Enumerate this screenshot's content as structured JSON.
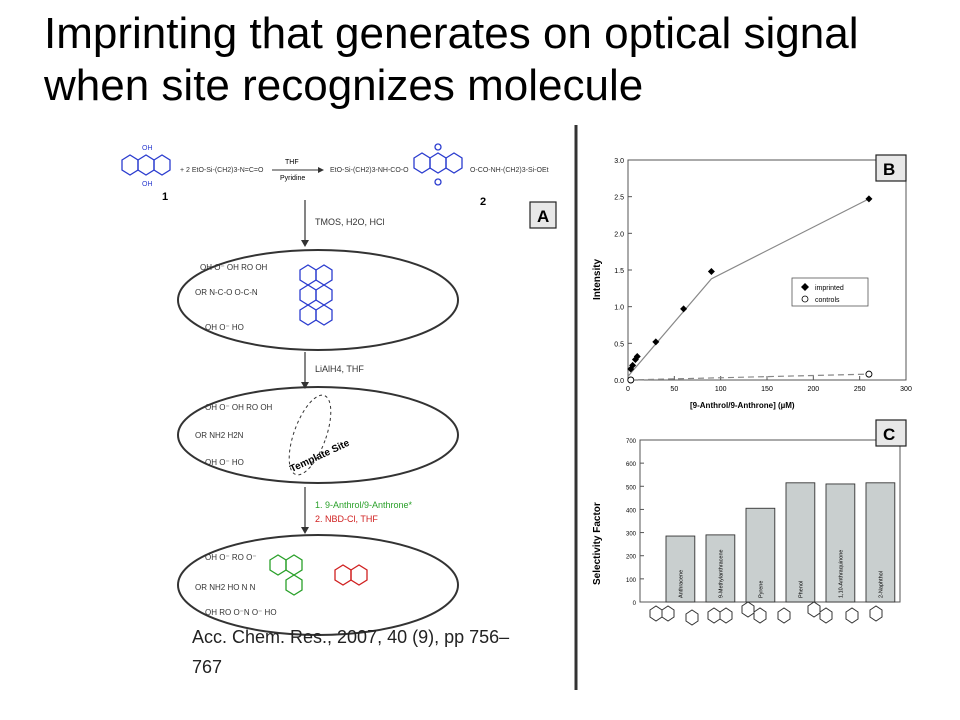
{
  "slide": {
    "title_line1": "Imprinting that generates on optical signal",
    "title_line2": "when site recognizes molecule",
    "citation_line1": "Acc. Chem. Res., 2007, 40 (9), pp 756–",
    "citation_line2": "767"
  },
  "scheme": {
    "panel_label": "A",
    "reaction1_reagent_top": "THF",
    "reaction1_reagent_bottom": "Pyridine",
    "compound1": "1",
    "compound2": "2",
    "step1": "TMOS, H2O, HCl",
    "step2": "LiAlH4, THF",
    "template_site": "Template Site",
    "step3a": "1.  9-Anthrol/9-Anthrone*",
    "step3b": "2.  NBD-Cl, THF"
  },
  "chart_data": [
    {
      "type": "scatter",
      "panel_label": "B",
      "xlabel": "[9-Anthrol/9-Anthrone] (µM)",
      "ylabel": "Intensity",
      "xlim": [
        0,
        300
      ],
      "ylim": [
        0,
        3.0
      ],
      "x_ticks": [
        0,
        50,
        100,
        150,
        200,
        250,
        300
      ],
      "y_ticks": [
        0.0,
        0.5,
        1.0,
        1.5,
        2.0,
        2.5,
        3.0
      ],
      "legend_position": "right",
      "series": [
        {
          "name": "imprinted",
          "marker": "filled-diamond",
          "points": [
            [
              3,
              0.15
            ],
            [
              5,
              0.2
            ],
            [
              8,
              0.28
            ],
            [
              10,
              0.32
            ],
            [
              30,
              0.52
            ],
            [
              60,
              0.97
            ],
            [
              90,
              1.48
            ],
            [
              260,
              2.47
            ]
          ]
        },
        {
          "name": "controls",
          "marker": "open-circle",
          "points": [
            [
              3,
              0.0
            ],
            [
              260,
              0.08
            ]
          ]
        }
      ]
    },
    {
      "type": "bar",
      "panel_label": "C",
      "ylabel": "Selectivity Factor",
      "ylim": [
        0,
        700
      ],
      "y_ticks": [
        0,
        100,
        200,
        300,
        400,
        500,
        600,
        700
      ],
      "categories": [
        "Anthracene",
        "9-Methylanthracene",
        "Pyrene",
        "Phenol",
        "1,10-Anthraquinone",
        "2-Naphthol"
      ],
      "values": [
        285,
        290,
        405,
        515,
        510,
        515
      ]
    }
  ]
}
